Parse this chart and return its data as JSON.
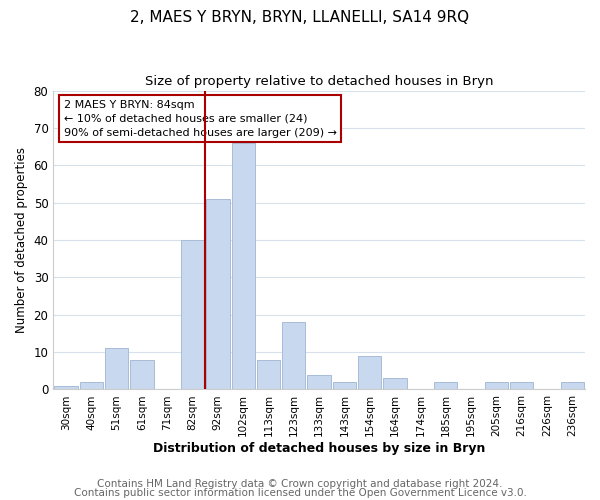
{
  "title": "2, MAES Y BRYN, BRYN, LLANELLI, SA14 9RQ",
  "subtitle": "Size of property relative to detached houses in Bryn",
  "xlabel": "Distribution of detached houses by size in Bryn",
  "ylabel": "Number of detached properties",
  "bar_labels": [
    "30sqm",
    "40sqm",
    "51sqm",
    "61sqm",
    "71sqm",
    "82sqm",
    "92sqm",
    "102sqm",
    "113sqm",
    "123sqm",
    "133sqm",
    "143sqm",
    "154sqm",
    "164sqm",
    "174sqm",
    "185sqm",
    "195sqm",
    "205sqm",
    "216sqm",
    "226sqm",
    "236sqm"
  ],
  "bar_values": [
    1,
    2,
    11,
    8,
    0,
    40,
    51,
    66,
    8,
    18,
    4,
    2,
    9,
    3,
    0,
    2,
    0,
    2,
    2,
    0,
    2
  ],
  "bar_color": "#c8d8ee",
  "bar_edge_color": "#a8bcd8",
  "highlight_line_index": 5,
  "highlight_line_color": "#aa0000",
  "ylim": [
    0,
    80
  ],
  "yticks": [
    0,
    10,
    20,
    30,
    40,
    50,
    60,
    70,
    80
  ],
  "annotation_text": "2 MAES Y BRYN: 84sqm\n← 10% of detached houses are smaller (24)\n90% of semi-detached houses are larger (209) →",
  "annotation_box_color": "#ffffff",
  "annotation_box_edge": "#aa0000",
  "footer1": "Contains HM Land Registry data © Crown copyright and database right 2024.",
  "footer2": "Contains public sector information licensed under the Open Government Licence v3.0.",
  "bg_color": "#ffffff",
  "plot_bg_color": "#ffffff",
  "grid_color": "#d8e0ec",
  "title_fontsize": 11,
  "subtitle_fontsize": 9.5,
  "xlabel_fontsize": 9,
  "ylabel_fontsize": 8.5,
  "footer_fontsize": 7.5
}
